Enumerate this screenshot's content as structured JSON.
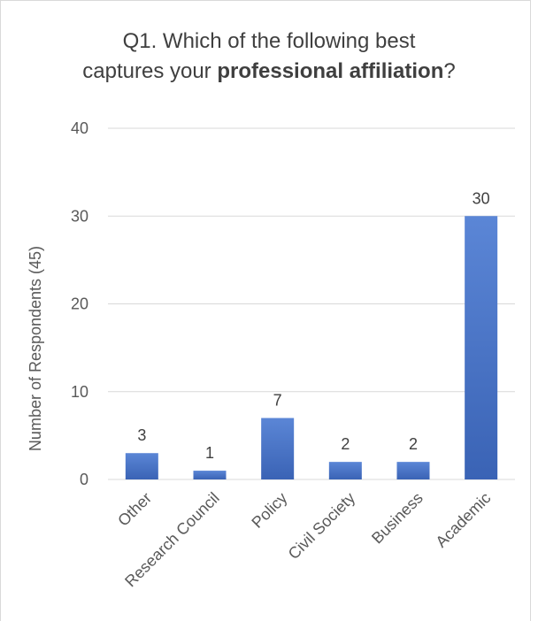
{
  "chart_data": {
    "type": "bar",
    "title_line1": "Q1.  Which of the following best",
    "title_line2_pre": "captures your ",
    "title_line2_bold": "professional affiliation",
    "title_line2_post": "?",
    "ylabel": "Number of Respondents (45)",
    "xlabel": "",
    "categories": [
      "Other",
      "Research Council",
      "Policy",
      "Civil Society",
      "Business",
      "Academic"
    ],
    "values": [
      3,
      1,
      7,
      2,
      2,
      30
    ],
    "ylim": [
      0,
      40
    ],
    "yticks": [
      "0",
      "10",
      "20",
      "30",
      "40"
    ],
    "grid": true,
    "bar_color": "#4472c4",
    "bar_color_light": "#5b86d6",
    "bar_color_dark": "#3a63b5",
    "gridline_color": "#d9d9d9"
  }
}
